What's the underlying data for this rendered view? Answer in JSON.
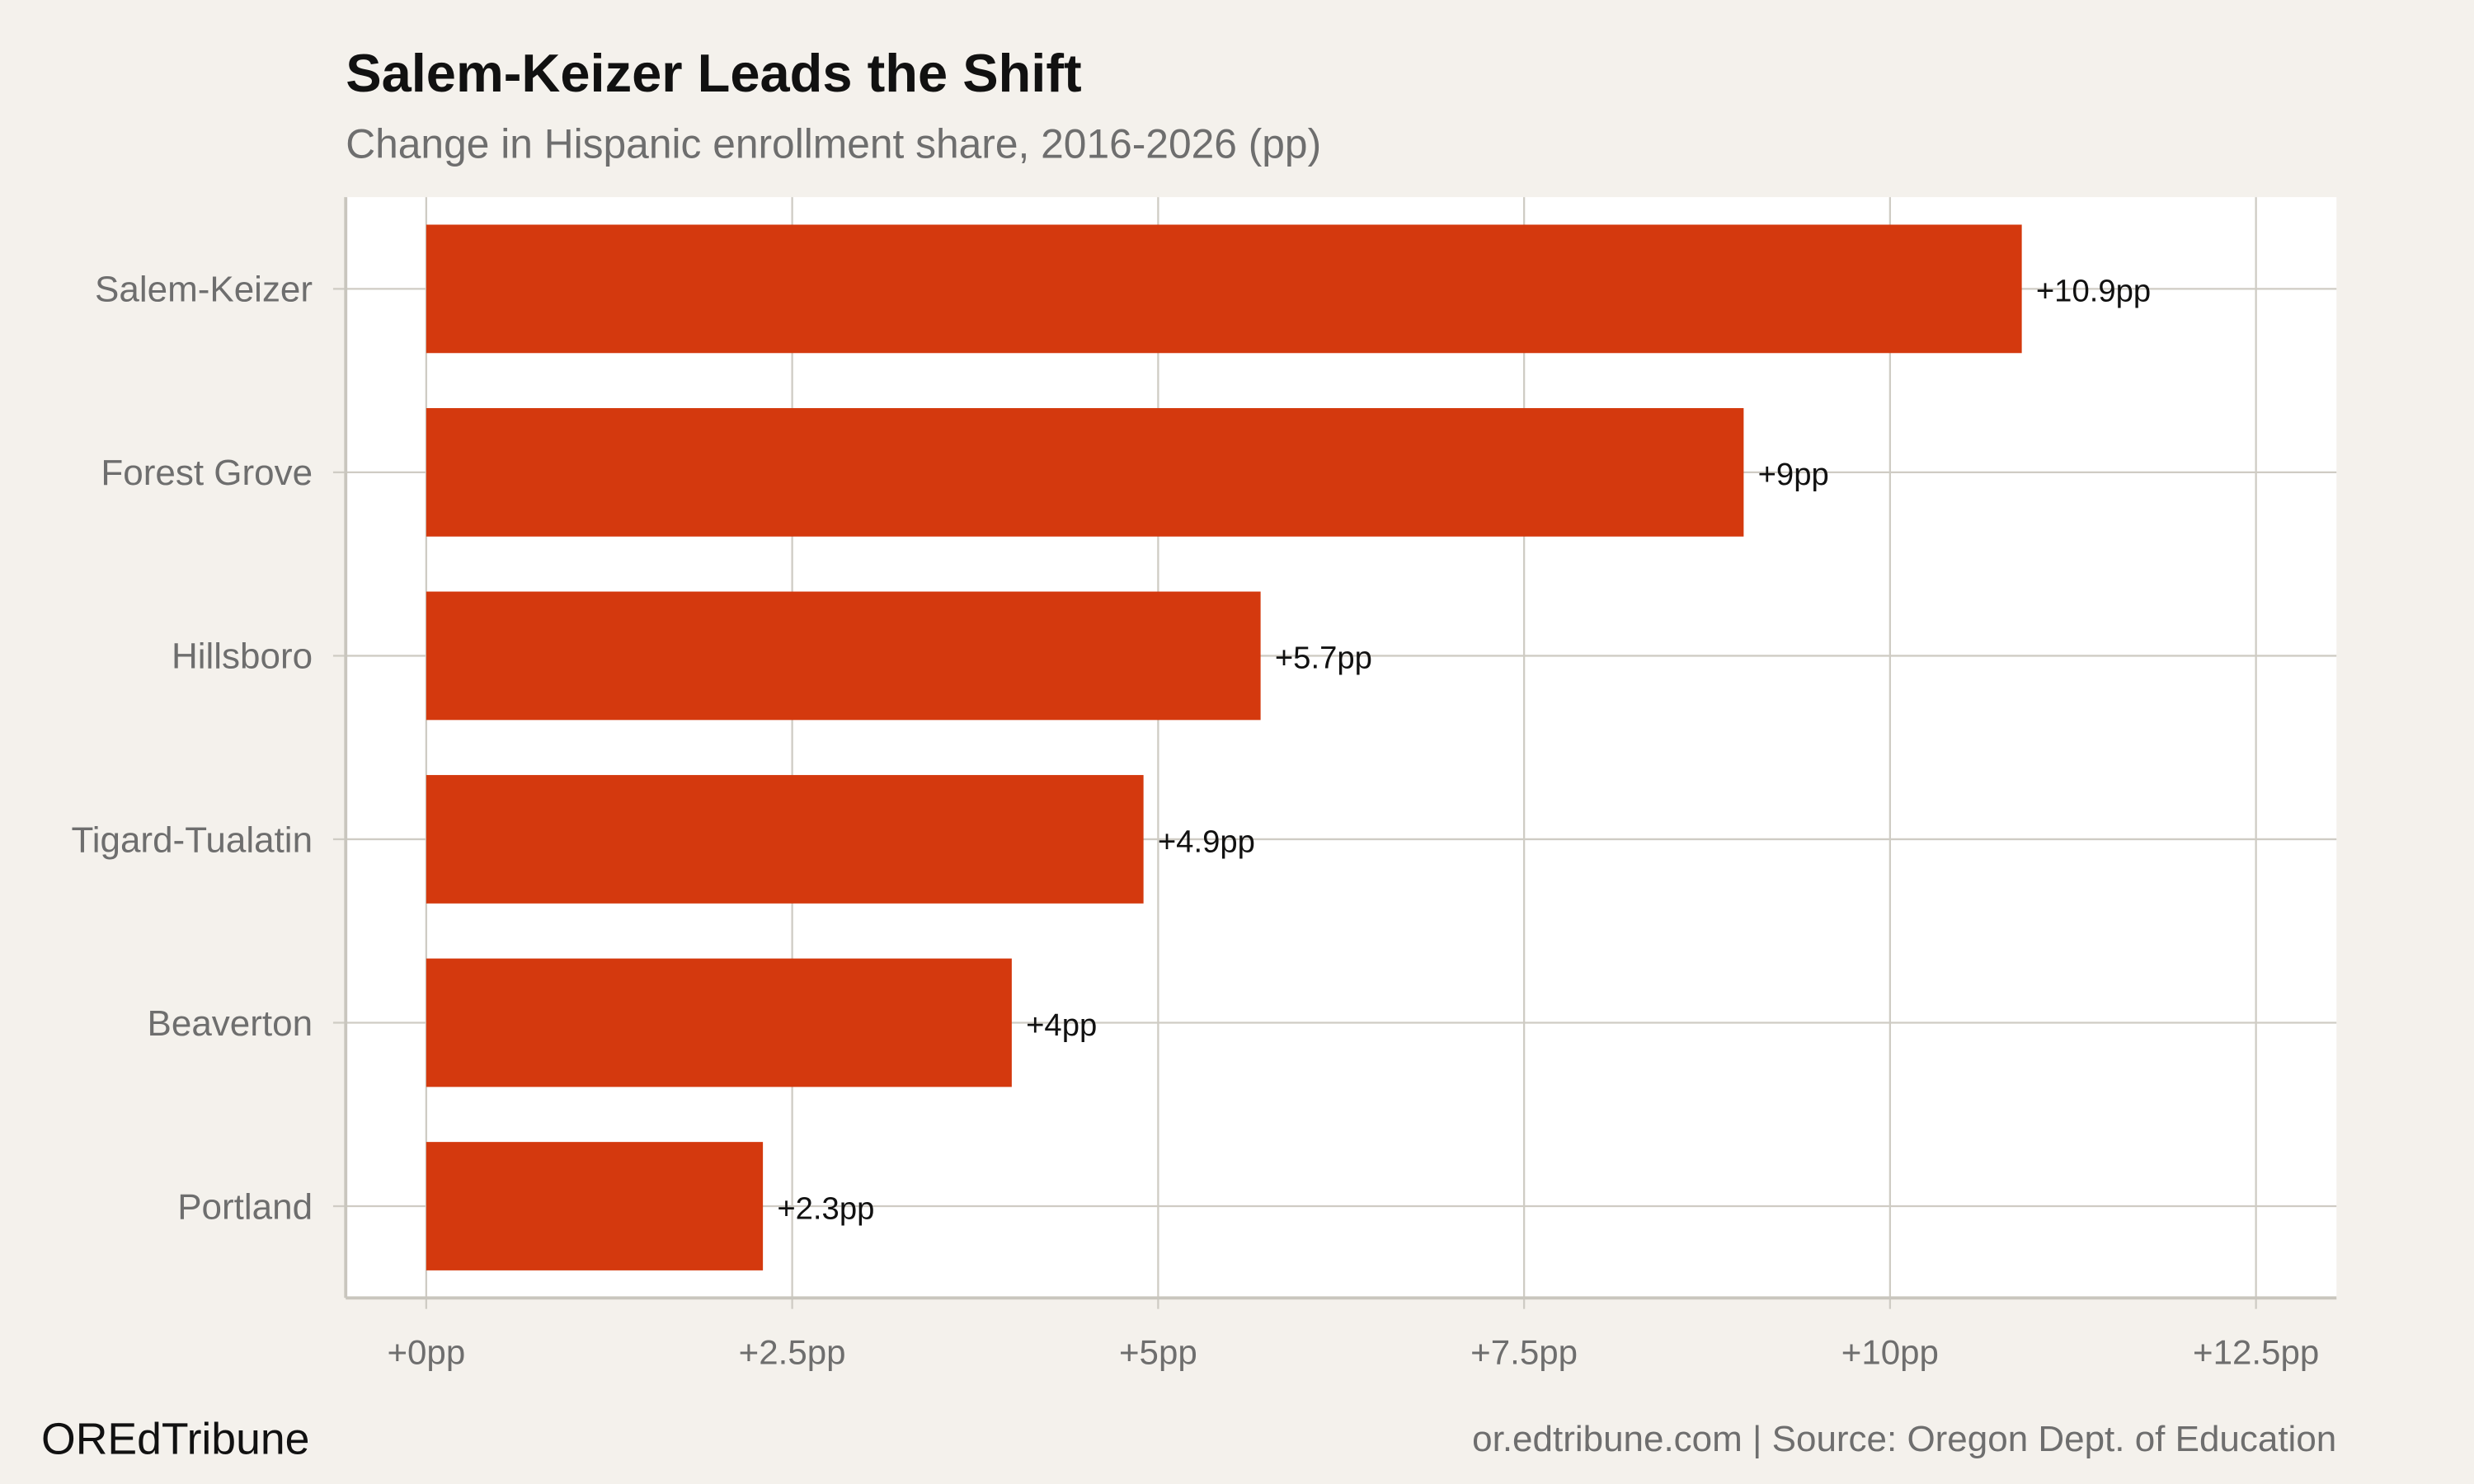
{
  "chart_data": {
    "type": "bar",
    "orientation": "horizontal",
    "title": "Salem-Keizer Leads the Shift",
    "subtitle": "Change in Hispanic enrollment share, 2016-2026 (pp)",
    "categories": [
      "Salem-Keizer",
      "Forest Grove",
      "Hillsboro",
      "Tigard-Tualatin",
      "Beaverton",
      "Portland"
    ],
    "values": [
      10.9,
      9,
      5.7,
      4.9,
      4,
      2.3
    ],
    "data_labels": [
      "+10.9pp",
      "+9pp",
      "+5.7pp",
      "+4.9pp",
      "+4pp",
      "+2.3pp"
    ],
    "x_ticks": [
      0,
      2.5,
      5,
      7.5,
      10,
      12.5
    ],
    "x_tick_labels": [
      "+0pp",
      "+2.5pp",
      "+5pp",
      "+7.5pp",
      "+10pp",
      "+12.5pp"
    ],
    "xlim": [
      -0.55,
      13.05
    ],
    "xlabel": "",
    "ylabel": "",
    "grid": true,
    "colors": {
      "bar": "#d4390e",
      "background": "#f4f1ec",
      "panel": "#ffffff",
      "grid": "#cfccc4"
    }
  },
  "footer": {
    "brand": "OREdTribune",
    "source": "or.edtribune.com | Source: Oregon Dept. of Education"
  }
}
